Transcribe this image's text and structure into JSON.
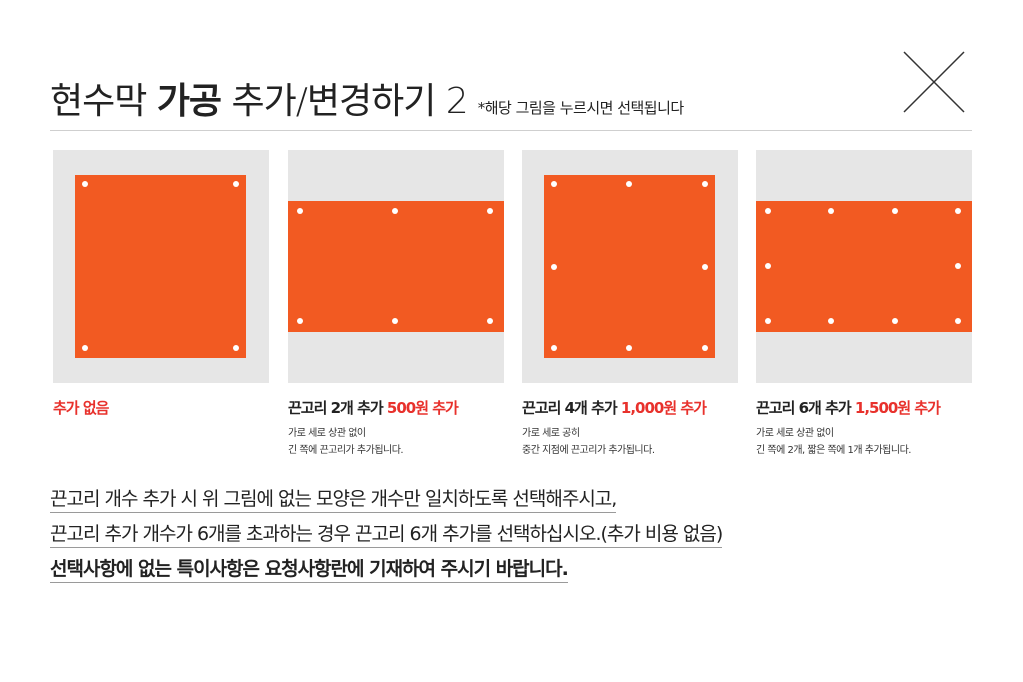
{
  "header": {
    "title_pre": "현수막 ",
    "title_bold": "가공",
    "title_post": " 추가/변경하기 2",
    "note": "*해당 그림을 누르시면 선택됩니다",
    "close_icon": "close-x-icon"
  },
  "colors": {
    "banner": "#f25a22",
    "thumb_bg": "#e6e6e6",
    "price": "#e8312c",
    "grommet": "#ffffff"
  },
  "options": [
    {
      "label_pre": "추가 없음",
      "price": "",
      "label_post": "",
      "desc1": "",
      "desc2": "",
      "grommets": 4,
      "shape": "square"
    },
    {
      "label_pre": "끈고리 2개 추가 ",
      "price": "500원 추가",
      "label_post": "",
      "desc1": "가로 세로 상관 없이",
      "desc2": "긴 쪽에 끈고리가 추가됩니다.",
      "grommets": 6,
      "shape": "wide"
    },
    {
      "label_pre": "끈고리 4개 추가 ",
      "price": "1,000원 추가",
      "label_post": "",
      "desc1": "가로 세로 공히",
      "desc2": "중간 지점에 끈고리가 추가됩니다.",
      "grommets": 8,
      "shape": "square"
    },
    {
      "label_pre": "끈고리 6개 추가 ",
      "price": "1,500원 추가",
      "label_post": "",
      "desc1": "가로 세로 상관 없이",
      "desc2": "긴 쪽에 2개, 짧은 쪽에 1개 추가됩니다.",
      "grommets": 10,
      "shape": "wide"
    }
  ],
  "notes": [
    "끈고리 개수 추가 시 위 그림에 없는 모양은 개수만 일치하도록 선택해주시고,",
    "끈고리 추가 개수가 6개를 초과하는 경우 끈고리 6개 추가를 선택하십시오.(추가 비용 없음)",
    "선택사항에 없는 특이사항은 요청사항란에 기재하여 주시기 바랍니다."
  ]
}
